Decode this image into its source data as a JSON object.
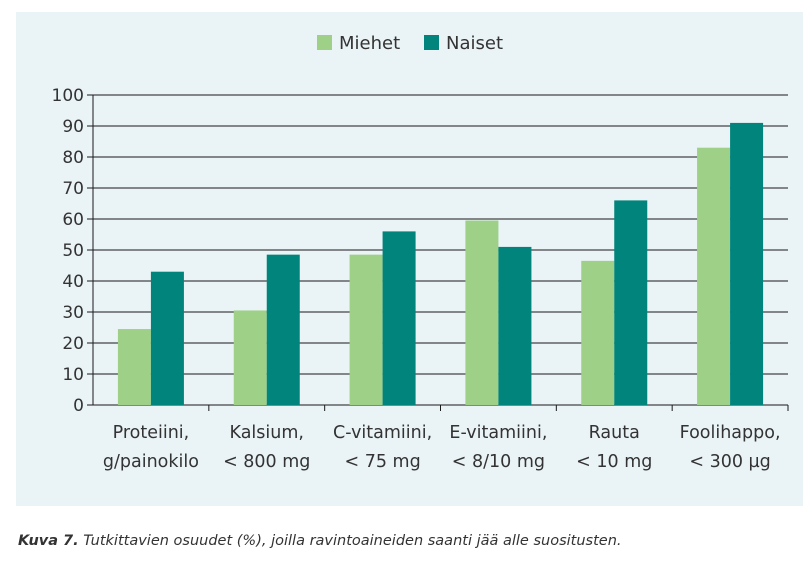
{
  "chart_data": {
    "type": "bar",
    "categories": [
      [
        "Proteiini,",
        "g/painokilo"
      ],
      [
        "Kalsium,",
        "< 800 mg"
      ],
      [
        "C-vitamiini,",
        "< 75 mg"
      ],
      [
        "E-vitamiini,",
        "< 8/10 mg"
      ],
      [
        "Rauta",
        "< 10 mg"
      ],
      [
        "Foolihappo,",
        "< 300 µg"
      ]
    ],
    "series": [
      {
        "name": "Miehet",
        "color": "#9fd088",
        "values": [
          24.5,
          30.5,
          48.5,
          59.5,
          46.5,
          83
        ]
      },
      {
        "name": "Naiset",
        "color": "#00847c",
        "values": [
          43,
          48.5,
          56,
          51,
          66,
          91
        ]
      }
    ],
    "ylim": [
      0,
      100
    ],
    "yticks": [
      0,
      10,
      20,
      30,
      40,
      50,
      60,
      70,
      80,
      90,
      100
    ],
    "grid": true,
    "legend": "top-center"
  },
  "caption": {
    "label": "Kuva 7.",
    "text": "Tutkittavien osuudet (%), joilla ravintoaineiden saanti jää alle suositusten."
  }
}
